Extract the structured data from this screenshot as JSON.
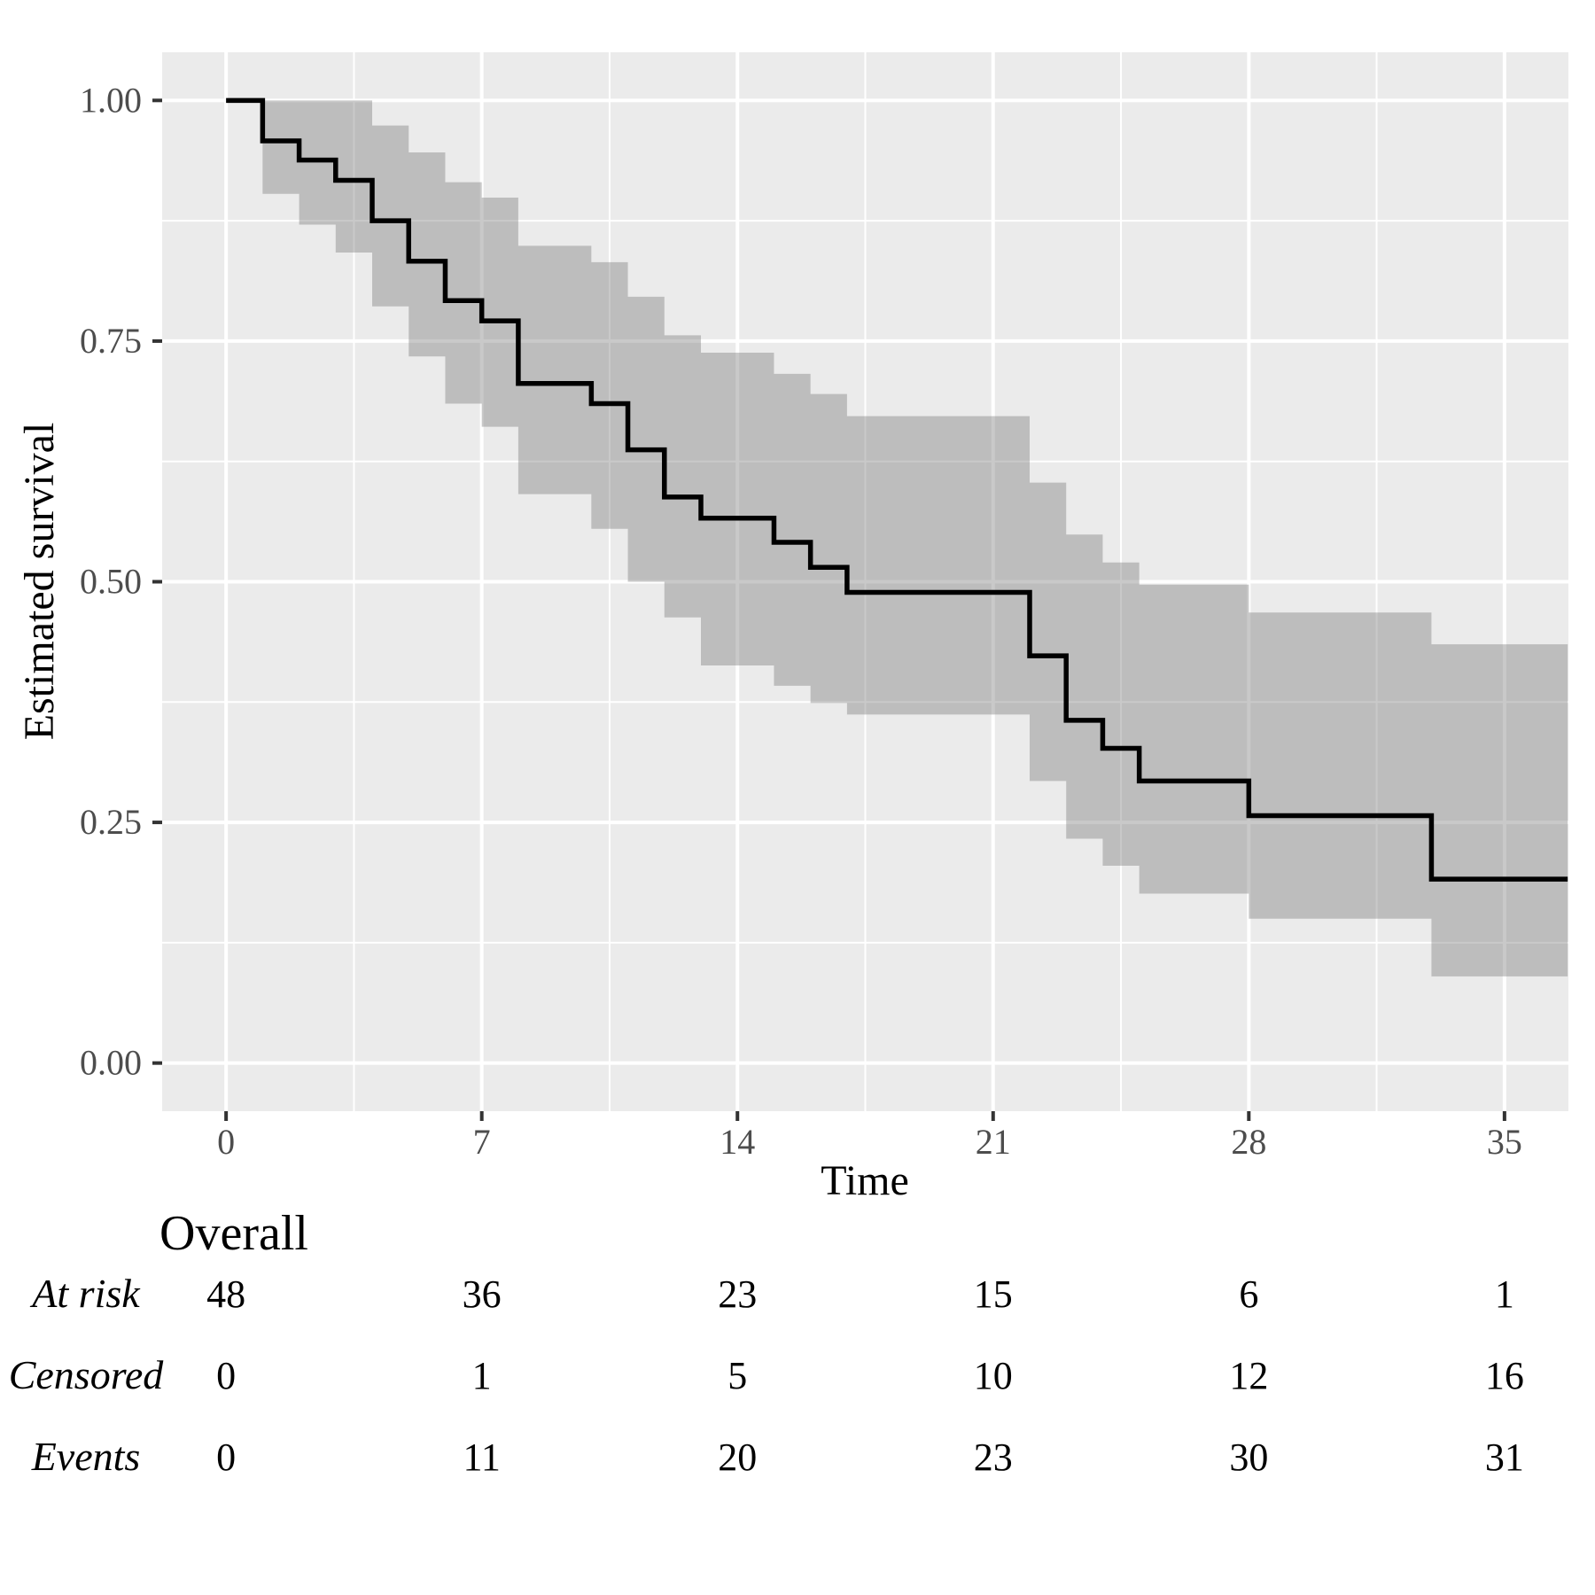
{
  "figure": {
    "kind": "Kaplan-Meier survival plot with risk table",
    "colors": {
      "panel_background": "#EBEBEB",
      "gridline": "#FFFFFF",
      "confidence_band": "rgba(127,127,127,0.42)",
      "curve": "#000000",
      "tick_mark": "#333333",
      "tick_label": "#4D4D4D",
      "text": "#000000"
    }
  },
  "chart_data": {
    "type": "line",
    "subtype": "kaplan-meier-step",
    "title": "",
    "xlabel": "Time",
    "ylabel": "Estimated survival",
    "x_breaks": [
      0,
      7,
      14,
      21,
      28,
      35
    ],
    "x_tick_labels": [
      "0",
      "7",
      "14",
      "21",
      "28",
      "35"
    ],
    "x_minor_breaks": [
      3.5,
      10.5,
      17.5,
      24.5,
      31.5
    ],
    "y_breaks": [
      0.0,
      0.25,
      0.5,
      0.75,
      1.0
    ],
    "y_tick_labels": [
      "0.00",
      "0.25",
      "0.50",
      "0.75",
      "1.00"
    ],
    "y_minor_breaks": [
      0.125,
      0.375,
      0.625,
      0.875
    ],
    "x_domain": [
      -1.75,
      36.75
    ],
    "y_domain": [
      -0.05,
      1.05
    ],
    "grid": "on",
    "legend_position": "none",
    "t_end": 36.73,
    "km_curve": {
      "times": [
        0,
        1,
        2,
        3,
        4,
        5,
        6,
        7,
        8,
        10,
        11,
        12,
        13,
        15,
        16,
        17,
        22,
        23,
        24,
        25,
        28,
        33
      ],
      "survival": [
        1.0,
        0.958,
        0.938,
        0.917,
        0.875,
        0.833,
        0.792,
        0.771,
        0.706,
        0.685,
        0.637,
        0.588,
        0.566,
        0.541,
        0.515,
        0.489,
        0.423,
        0.356,
        0.327,
        0.293,
        0.257,
        0.191
      ]
    },
    "confidence_band": {
      "times": [
        1,
        2,
        3,
        4,
        5,
        6,
        7,
        8,
        10,
        11,
        12,
        13,
        15,
        16,
        17,
        22,
        23,
        24,
        25,
        28,
        33
      ],
      "upper": [
        1.0,
        1.0,
        1.0,
        0.974,
        0.946,
        0.915,
        0.899,
        0.849,
        0.832,
        0.796,
        0.756,
        0.738,
        0.716,
        0.695,
        0.672,
        0.603,
        0.549,
        0.52,
        0.497,
        0.468,
        0.435
      ],
      "lower": [
        0.903,
        0.871,
        0.842,
        0.786,
        0.734,
        0.685,
        0.661,
        0.591,
        0.555,
        0.5,
        0.463,
        0.413,
        0.392,
        0.374,
        0.362,
        0.293,
        0.233,
        0.205,
        0.176,
        0.15,
        0.09
      ]
    },
    "risk_table": {
      "group_label": "Overall",
      "times": [
        0,
        7,
        14,
        21,
        28,
        35
      ],
      "rows": [
        {
          "label": "At risk",
          "values": [
            "48",
            "36",
            "23",
            "15",
            "6",
            "1"
          ]
        },
        {
          "label": "Censored",
          "values": [
            "0",
            "1",
            "5",
            "10",
            "12",
            "16"
          ]
        },
        {
          "label": "Events",
          "values": [
            "0",
            "11",
            "20",
            "23",
            "30",
            "31"
          ]
        }
      ]
    }
  }
}
